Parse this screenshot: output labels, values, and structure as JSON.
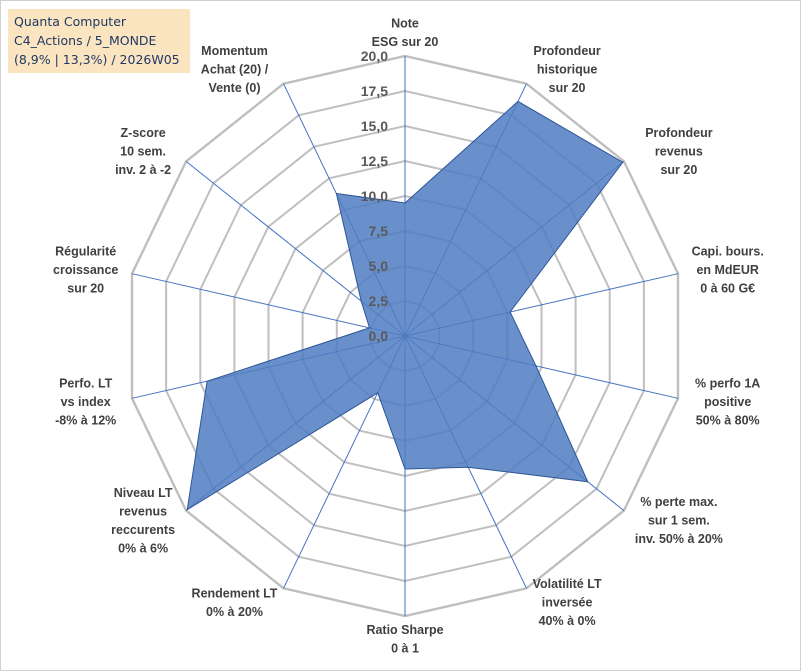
{
  "info_box": {
    "line1": "Quanta Computer",
    "line2": "C4_Actions / 5_MONDE",
    "line3": "(8,9% | 13,3%) / 2026W05"
  },
  "colors": {
    "grid": "#bfbfbf",
    "spoke": "#4472c4",
    "fill": "#4f7dc2",
    "fill_stroke": "#2f5597",
    "info_bg": "#fbe5c0",
    "info_text": "#1f3864"
  },
  "chart_data": {
    "type": "radar",
    "title": "",
    "rmin": 0,
    "rmax": 20,
    "ticks": [
      "0,0",
      "2,5",
      "5,0",
      "7,5",
      "10,0",
      "12,5",
      "15,0",
      "17,5",
      "20,0"
    ],
    "tick_values": [
      0,
      2.5,
      5,
      7.5,
      10,
      12.5,
      15,
      17.5,
      20
    ],
    "axes": [
      {
        "label": [
          "Note",
          "ESG sur 20"
        ],
        "value": 9.5
      },
      {
        "label": [
          "Profondeur",
          "historique",
          "sur 20"
        ],
        "value": 18.6
      },
      {
        "label": [
          "Profondeur",
          "revenus",
          "sur 20"
        ],
        "value": 19.9
      },
      {
        "label": [
          "Capi. bours.",
          "en MdEUR",
          "0 à 60 G€"
        ],
        "value": 7.7
      },
      {
        "label": [
          "% perfo 1A",
          "positive",
          "50% à 80%"
        ],
        "value": 9.6
      },
      {
        "label": [
          "% perte max.",
          "sur 1 sem.",
          "inv. 50% à 20%"
        ],
        "value": 16.7
      },
      {
        "label": [
          "Volatilité LT",
          "inversée",
          "40% à 0%"
        ],
        "value": 10.4
      },
      {
        "label": [
          "Ratio Sharpe",
          "0 à 1"
        ],
        "value": 9.5
      },
      {
        "label": [
          "Rendement LT",
          "0% à 20%"
        ],
        "value": 4.5
      },
      {
        "label": [
          "Niveau LT",
          "revenus",
          "reccurents",
          "0% à 6%"
        ],
        "value": 19.9
      },
      {
        "label": [
          "Perfo. LT",
          "vs index",
          "-8% à 12%"
        ],
        "value": 14.5
      },
      {
        "label": [
          "Régularité",
          "croissance",
          "sur 20"
        ],
        "value": 2.6
      },
      {
        "label": [
          "Z-score",
          "10 sem.",
          "inv. 2 à -2"
        ],
        "value": 4.0
      },
      {
        "label": [
          "Momentum",
          "Achat (20) /",
          "Vente (0)"
        ],
        "value": 11.3
      }
    ]
  }
}
